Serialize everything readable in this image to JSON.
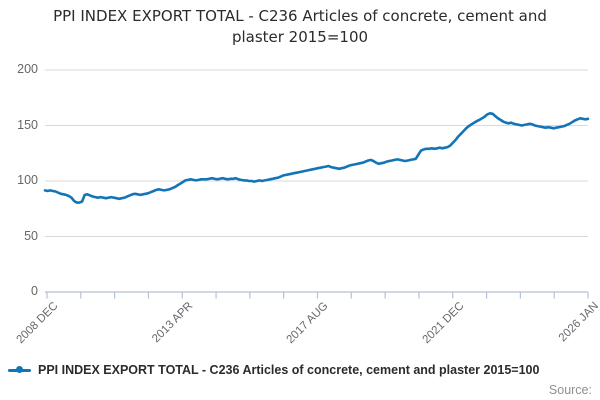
{
  "title": "PPI INDEX EXPORT TOTAL - C236 Articles of concrete, cement and plaster 2015=100",
  "legend": {
    "label": "PPI INDEX EXPORT TOTAL - C236 Articles of concrete, cement and plaster 2015=100"
  },
  "source_label": "Source:",
  "colors": {
    "line": "#1375b8",
    "grid": "#d9d9d9",
    "axis": "#b3c0d6",
    "y_tick_label": "#666666",
    "x_tick_label": "#66696e",
    "title": "#2b2b2b",
    "source": "#8f8f8f"
  },
  "chart_data": {
    "type": "line",
    "title": "PPI INDEX EXPORT TOTAL - C236 Articles of concrete, cement and plaster 2015=100",
    "xlabel": "",
    "ylabel": "",
    "x_start": "2008 DEC",
    "x_end": "2026 JAN",
    "frequency": "monthly",
    "x_tick_labels": [
      "2008 DEC",
      "2013 APR",
      "2017 AUG",
      "2021 DEC",
      "2026 JAN"
    ],
    "minor_divisions": 4,
    "y_ticks": [
      0,
      50,
      100,
      150,
      200
    ],
    "ylim": [
      0,
      200
    ],
    "grid": "horizontal",
    "legend_position": "bottom-left",
    "series": [
      {
        "name": "PPI INDEX EXPORT TOTAL - C236 Articles of concrete, cement and plaster 2015=100",
        "color": "#1375b8",
        "values": [
          91.5,
          91,
          91.5,
          91,
          90.5,
          89.5,
          88.5,
          88,
          87.5,
          86.5,
          85,
          82,
          80.5,
          80.5,
          81.5,
          87.5,
          88,
          87,
          86,
          85.5,
          85,
          85.5,
          85,
          84.5,
          85,
          85.5,
          85,
          84.5,
          84,
          84.5,
          85,
          86,
          87,
          88,
          88.5,
          88,
          87.5,
          88,
          88.5,
          89,
          90,
          91,
          92,
          92.5,
          92,
          91.5,
          92,
          92.5,
          93.5,
          94.5,
          96,
          97.5,
          99,
          100.5,
          101,
          101.5,
          101,
          100.5,
          101,
          101.5,
          101.5,
          101.5,
          102,
          102.5,
          102,
          101.5,
          102,
          102.5,
          102,
          101.5,
          102,
          102,
          102.5,
          101.5,
          101,
          100.5,
          100.5,
          100,
          100,
          99.5,
          100,
          100.5,
          100,
          100.5,
          101,
          101.5,
          102,
          102.5,
          103,
          104,
          105,
          105.5,
          106,
          106.5,
          107,
          107.5,
          108,
          108.5,
          109,
          109.5,
          110,
          110.5,
          111,
          111.5,
          112,
          112.5,
          113,
          113.5,
          112.5,
          112,
          111.5,
          111,
          111.5,
          112,
          113,
          114,
          114.5,
          115,
          115.5,
          116,
          116.5,
          117.5,
          118.5,
          119,
          118,
          116.5,
          115.5,
          116,
          116.5,
          117.5,
          118,
          118.5,
          119,
          119.5,
          119,
          118.5,
          118,
          118.5,
          119,
          119.5,
          120,
          124,
          127.5,
          128.5,
          129,
          129,
          129.5,
          129,
          129.5,
          130,
          129.5,
          130,
          130.5,
          132,
          134.5,
          137,
          140,
          142.5,
          145,
          147.5,
          149.5,
          151,
          152.5,
          154,
          155,
          156.5,
          158,
          160,
          161,
          160.5,
          158.5,
          156.5,
          155,
          153.5,
          152.5,
          152,
          152.5,
          151.5,
          151,
          150.5,
          150,
          150.5,
          151,
          151.5,
          151,
          150,
          149.5,
          149,
          148.5,
          148,
          148.5,
          148,
          147.5,
          148,
          148.5,
          149,
          149.5,
          150.5,
          151.5,
          153,
          154.5,
          155.5,
          156.5,
          156,
          155.5,
          156
        ]
      }
    ]
  }
}
